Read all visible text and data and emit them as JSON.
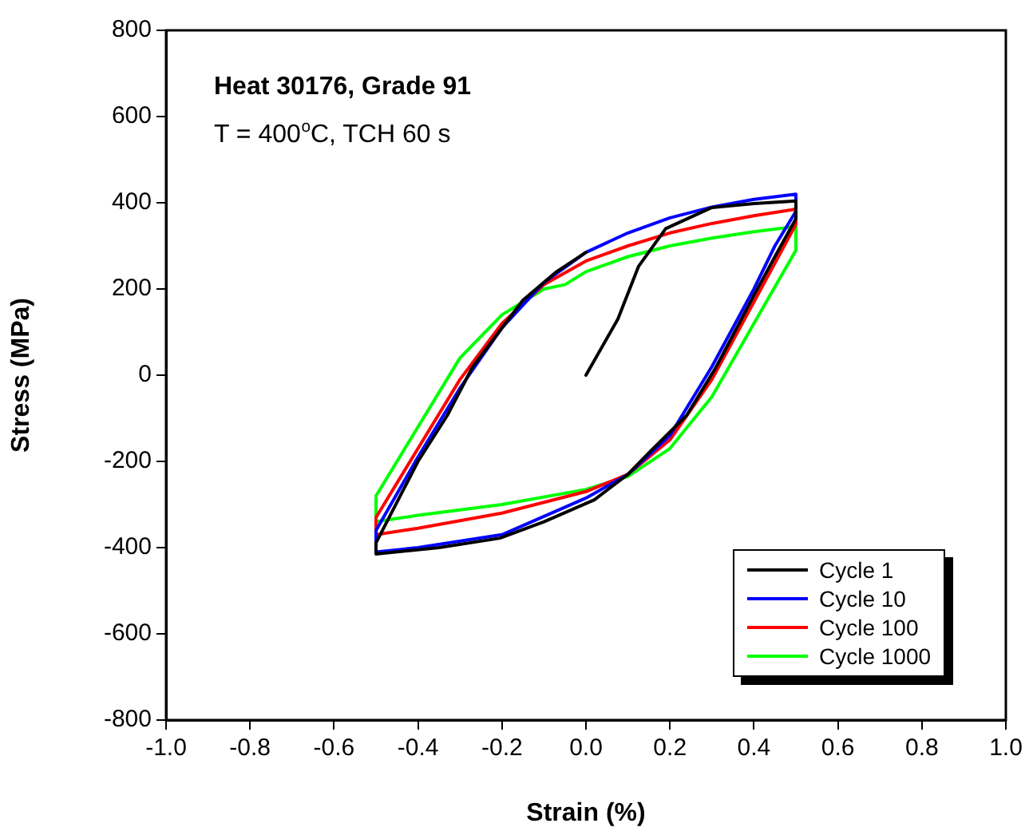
{
  "chart_data": {
    "type": "line",
    "title": "Heat 30176, Grade 91",
    "subtitle": "T = 400$^{o}$C, TCH 60 s",
    "xlabel": "Strain (%)",
    "ylabel": "Stress (MPa)",
    "xlim": [
      -1.0,
      1.0
    ],
    "xticks": [
      {
        "value": -1,
        "label": "-1.0"
      },
      -0.8,
      -0.6,
      -0.4,
      -0.2,
      {
        "value": 0,
        "label": "0.0"
      },
      0.2,
      0.4,
      0.6,
      0.8,
      {
        "value": 1,
        "label": "1.0"
      }
    ],
    "ylim": [
      -800,
      800
    ],
    "yticks": [
      -800,
      -600,
      -400,
      -200,
      0,
      200,
      400,
      600,
      800
    ],
    "grid": false,
    "legend": "bottom right",
    "marker": "none",
    "line_style": "solid",
    "series": [
      {
        "name": "Cycle 1",
        "color": "#000000",
        "x": [
          0,
          0.076,
          0.125,
          0.19,
          0.3,
          0.4,
          0.5,
          0.5,
          0.45,
          0.4,
          0.31,
          0.24,
          0.15,
          0.1,
          0.02,
          -0.1,
          -0.205,
          -0.35,
          -0.5,
          -0.5,
          -0.4,
          -0.33,
          -0.27,
          -0.15,
          -0.07,
          0
        ],
        "values": [
          0,
          130,
          252,
          340,
          389,
          398,
          404,
          363,
          275,
          185,
          19,
          -93,
          -180,
          -230,
          -289,
          -340,
          -378,
          -400,
          -415,
          -389,
          -200,
          -93,
          19,
          174,
          240,
          285
        ]
      },
      {
        "name": "Cycle 10",
        "color": "#0000ff",
        "x": [
          -0.5,
          -0.4,
          -0.3,
          -0.2,
          -0.1,
          0,
          0.1,
          0.2,
          0.3,
          0.4,
          0.5,
          0.5,
          0.45,
          0.4,
          0.3,
          0.2,
          0.1,
          0,
          -0.2,
          -0.4,
          -0.5,
          -0.5
        ],
        "values": [
          -360,
          -190,
          -30,
          110,
          215,
          285,
          330,
          365,
          390,
          408,
          420,
          380,
          300,
          200,
          20,
          -140,
          -230,
          -285,
          -370,
          -400,
          -410,
          -365
        ]
      },
      {
        "name": "Cycle 100",
        "color": "#ff0000",
        "x": [
          -0.5,
          -0.4,
          -0.3,
          -0.2,
          -0.1,
          0,
          0.1,
          0.2,
          0.3,
          0.4,
          0.5,
          0.5,
          0.4,
          0.3,
          0.2,
          0.1,
          0,
          -0.2,
          -0.4,
          -0.5,
          -0.5
        ],
        "values": [
          -330,
          -170,
          -10,
          120,
          210,
          265,
          300,
          330,
          352,
          370,
          385,
          350,
          170,
          -10,
          -150,
          -230,
          -270,
          -320,
          -355,
          -370,
          -335
        ]
      },
      {
        "name": "Cycle 1000",
        "color": "#00ff00",
        "x": [
          -0.5,
          -0.4,
          -0.3,
          -0.2,
          -0.1,
          -0.05,
          0,
          0.1,
          0.2,
          0.3,
          0.4,
          0.5,
          0.5,
          0.4,
          0.3,
          0.2,
          0.1,
          0,
          -0.2,
          -0.4,
          -0.5,
          -0.5
        ],
        "values": [
          -280,
          -120,
          40,
          140,
          200,
          210,
          240,
          275,
          300,
          318,
          333,
          345,
          290,
          120,
          -50,
          -170,
          -235,
          -265,
          -300,
          -325,
          -340,
          -285
        ]
      }
    ]
  }
}
